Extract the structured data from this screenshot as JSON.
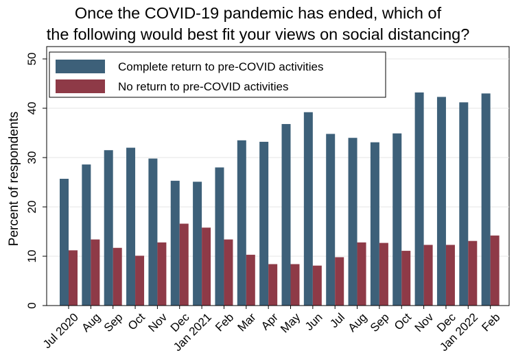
{
  "chart_data": {
    "type": "bar",
    "title": [
      "Once the COVID-19 pandemic has ended, which of",
      "the following would best fit your views on social distancing?"
    ],
    "ylabel": "Percent of respondents",
    "xlabel": "",
    "ylim": [
      0,
      50
    ],
    "yticks": [
      "0",
      "10",
      "20",
      "30",
      "40",
      "50"
    ],
    "grid": true,
    "legend_position": "top-left",
    "categories": [
      "Jul 2020",
      "Aug",
      "Sep",
      "Oct",
      "Nov",
      "Dec",
      "Jan 2021",
      "Feb",
      "Mar",
      "Apr",
      "May",
      "Jun",
      "Jul",
      "Aug",
      "Sep",
      "Oct",
      "Nov",
      "Dec",
      "Jan 2022",
      "Feb"
    ],
    "series": [
      {
        "name": "Complete return to pre-COVID activities",
        "color": "#3d6079",
        "values": [
          25.7,
          28.6,
          31.5,
          32.0,
          29.8,
          25.3,
          25.1,
          28.0,
          33.5,
          33.2,
          36.8,
          39.2,
          34.8,
          34.0,
          33.1,
          34.9,
          43.2,
          42.3,
          41.2,
          43.0
        ]
      },
      {
        "name": "No return to pre-COVID activities",
        "color": "#8e3a47",
        "values": [
          11.2,
          13.4,
          11.7,
          10.1,
          12.8,
          16.6,
          15.8,
          13.4,
          10.3,
          8.4,
          8.4,
          8.1,
          9.8,
          12.8,
          12.7,
          11.1,
          12.3,
          12.3,
          13.1,
          14.2
        ]
      }
    ]
  }
}
